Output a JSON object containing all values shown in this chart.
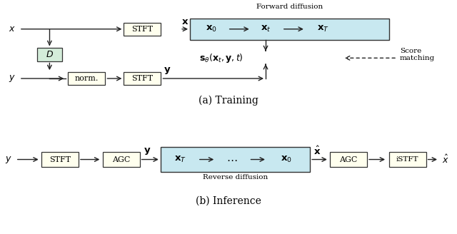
{
  "fig_width": 6.4,
  "fig_height": 3.28,
  "dpi": 100,
  "bg_color": "#ffffff",
  "box_color_yellow": "#ffffee",
  "box_color_blue": "#c8e8f0",
  "box_color_green": "#d4edda",
  "box_edge_color": "#333333",
  "arrow_color": "#222222",
  "title_a": "(a) Training",
  "title_b": "(b) Inference",
  "forward_diffusion_label": "Forward diffusion",
  "reverse_diffusion_label": "Reverse diffusion",
  "score_matching_label": "Score\nmatching"
}
